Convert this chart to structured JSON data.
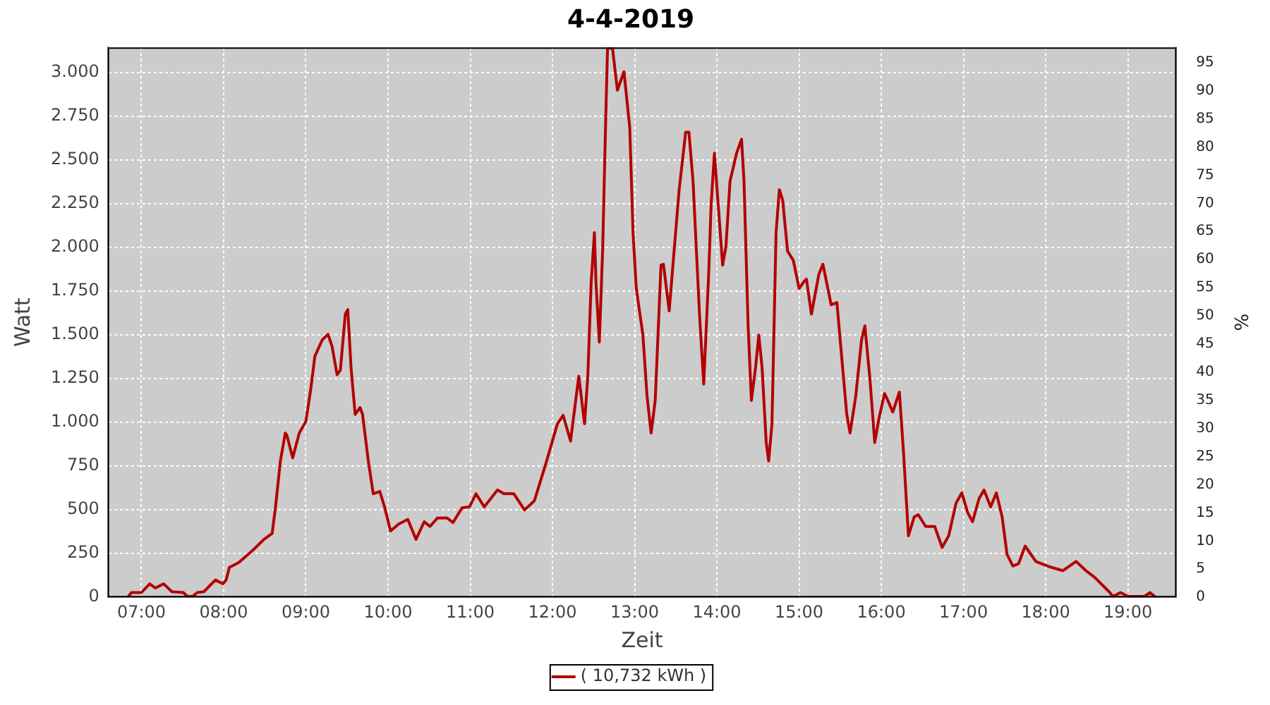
{
  "chart_data": {
    "type": "line",
    "title": "4-4-2019",
    "xlabel": "Zeit",
    "ylabel": "Watt",
    "y2label": "%",
    "xlim": [
      6.59,
      19.59
    ],
    "xticks": [
      {
        "value": 7,
        "label": "07:00"
      },
      {
        "value": 8,
        "label": "08:00"
      },
      {
        "value": 9,
        "label": "09:00"
      },
      {
        "value": 10,
        "label": "10:00"
      },
      {
        "value": 11,
        "label": "11:00"
      },
      {
        "value": 12,
        "label": "12:00"
      },
      {
        "value": 13,
        "label": "13:00"
      },
      {
        "value": 14,
        "label": "14:00"
      },
      {
        "value": 15,
        "label": "15:00"
      },
      {
        "value": 16,
        "label": "16:00"
      },
      {
        "value": 17,
        "label": "17:00"
      },
      {
        "value": 18,
        "label": "18:00"
      },
      {
        "value": 19,
        "label": "19:00"
      }
    ],
    "ylim": [
      0,
      3144
    ],
    "yticks": [
      0,
      250,
      500,
      750,
      {
        "value": 1000,
        "label": "1.000"
      },
      {
        "value": 1250,
        "label": "1.250"
      },
      {
        "value": 1500,
        "label": "1.500"
      },
      {
        "value": 1750,
        "label": "1.750"
      },
      {
        "value": 2000,
        "label": "2.000"
      },
      {
        "value": 2250,
        "label": "2.250"
      },
      {
        "value": 2500,
        "label": "2.500"
      },
      {
        "value": 2750,
        "label": "2.750"
      },
      {
        "value": 3000,
        "label": "3.000"
      }
    ],
    "y2lim": [
      0,
      97.7
    ],
    "y2ticks": [
      0,
      5,
      10,
      15,
      20,
      25,
      30,
      35,
      40,
      45,
      50,
      55,
      60,
      65,
      70,
      75,
      80,
      85,
      90,
      95
    ],
    "grid": true,
    "legend": "bottom",
    "marker": "none",
    "line_style": "solid",
    "series": [
      {
        "name": "( 10,732 kWh )",
        "color": "#b40000",
        "x": [
          6.83,
          6.88,
          7.0,
          7.1,
          7.17,
          7.27,
          7.37,
          7.51,
          7.56,
          7.62,
          7.68,
          7.76,
          7.9,
          7.99,
          8.03,
          8.07,
          8.18,
          8.35,
          8.49,
          8.59,
          8.63,
          8.69,
          8.75,
          8.77,
          8.84,
          8.92,
          9.0,
          9.06,
          9.11,
          9.2,
          9.27,
          9.32,
          9.38,
          9.42,
          9.48,
          9.51,
          9.55,
          9.6,
          9.66,
          9.69,
          9.76,
          9.82,
          9.9,
          9.96,
          10.03,
          10.13,
          10.24,
          10.34,
          10.44,
          10.51,
          10.6,
          10.72,
          10.79,
          10.9,
          10.99,
          11.07,
          11.17,
          11.33,
          11.41,
          11.53,
          11.66,
          11.78,
          11.92,
          12.06,
          12.13,
          12.22,
          12.32,
          12.39,
          12.43,
          12.47,
          12.51,
          12.53,
          12.57,
          12.61,
          12.65,
          12.67,
          12.73,
          12.79,
          12.87,
          12.94,
          12.98,
          13.02,
          13.1,
          13.15,
          13.2,
          13.25,
          13.32,
          13.35,
          13.42,
          13.47,
          13.54,
          13.62,
          13.66,
          13.71,
          13.79,
          13.84,
          13.9,
          13.93,
          13.97,
          14.02,
          14.07,
          14.11,
          14.16,
          14.24,
          14.3,
          14.33,
          14.38,
          14.42,
          14.47,
          14.51,
          14.55,
          14.6,
          14.63,
          14.67,
          14.72,
          14.76,
          14.8,
          14.86,
          14.93,
          15.0,
          15.06,
          15.09,
          15.15,
          15.24,
          15.29,
          15.39,
          15.46,
          15.52,
          15.58,
          15.62,
          15.69,
          15.76,
          15.8,
          15.86,
          15.92,
          15.97,
          16.04,
          16.08,
          16.14,
          16.22,
          16.27,
          16.33,
          16.4,
          16.45,
          16.54,
          16.65,
          16.74,
          16.82,
          16.91,
          16.98,
          17.05,
          17.11,
          17.19,
          17.25,
          17.33,
          17.4,
          17.47,
          17.53,
          17.6,
          17.67,
          17.75,
          17.88,
          17.95,
          18.07,
          18.21,
          18.37,
          18.49,
          18.6,
          18.77,
          18.82,
          18.91,
          19.0,
          19.2,
          19.27,
          19.34
        ],
        "values": [
          0,
          27,
          27,
          77,
          53,
          77,
          32,
          27,
          5,
          5,
          27,
          32,
          99,
          77,
          99,
          171,
          197,
          267,
          331,
          365,
          512,
          779,
          939,
          925,
          797,
          939,
          1005,
          1192,
          1379,
          1472,
          1504,
          1432,
          1272,
          1299,
          1619,
          1645,
          1312,
          1045,
          1085,
          1045,
          779,
          592,
          605,
          512,
          379,
          419,
          445,
          331,
          432,
          405,
          453,
          453,
          427,
          512,
          517,
          592,
          517,
          613,
          592,
          592,
          499,
          552,
          765,
          992,
          1040,
          893,
          1264,
          992,
          1264,
          1792,
          2085,
          1792,
          1459,
          1979,
          2779,
          3140,
          3140,
          2899,
          3005,
          2686,
          2085,
          1765,
          1499,
          1152,
          939,
          1125,
          1899,
          1904,
          1637,
          1926,
          2325,
          2659,
          2659,
          2379,
          1605,
          1219,
          1845,
          2245,
          2539,
          2219,
          1899,
          2005,
          2379,
          2539,
          2619,
          2379,
          1552,
          1125,
          1312,
          1499,
          1312,
          885,
          779,
          992,
          2085,
          2331,
          2272,
          1979,
          1926,
          1765,
          1805,
          1819,
          1619,
          1845,
          1904,
          1672,
          1685,
          1365,
          1045,
          939,
          1152,
          1472,
          1552,
          1259,
          885,
          1019,
          1165,
          1125,
          1059,
          1173,
          832,
          352,
          459,
          472,
          405,
          405,
          285,
          352,
          539,
          597,
          485,
          432,
          565,
          613,
          517,
          597,
          459,
          245,
          179,
          192,
          293,
          205,
          192,
          171,
          152,
          205,
          152,
          112,
          32,
          5,
          27,
          5,
          5,
          27,
          0
        ]
      }
    ]
  }
}
